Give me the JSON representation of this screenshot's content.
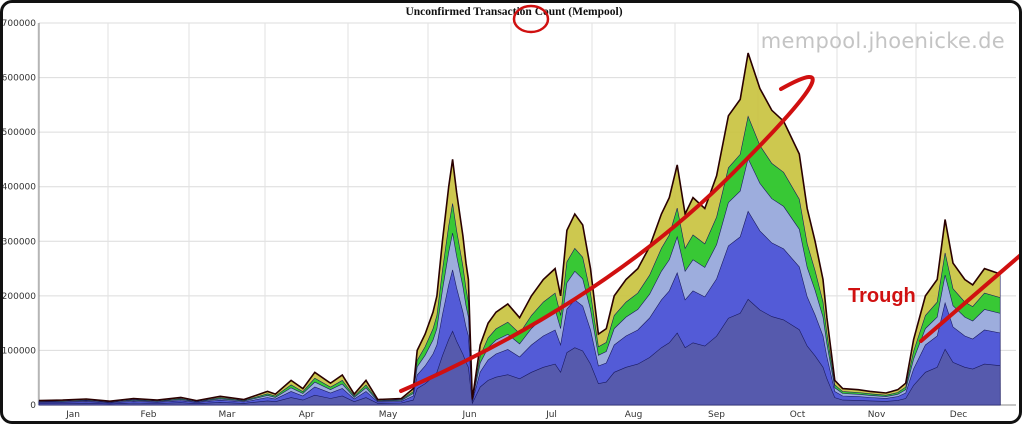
{
  "chart_data": {
    "type": "area",
    "title": "Unconfirmed Transaction Count (Mempool)",
    "watermark": "mempool.jhoenicke.de",
    "annotation": "Trough",
    "xlabel": "",
    "ylabel": "",
    "ylim": [
      0,
      700000
    ],
    "yticks": [
      "0",
      "100000",
      "200000",
      "300000",
      "400000",
      "500000",
      "600000",
      "700000"
    ],
    "xticks": [
      "Jan",
      "Feb",
      "Mar",
      "Apr",
      "May",
      "Jun",
      "Jul",
      "Aug",
      "Sep",
      "Oct",
      "Nov",
      "Dec"
    ],
    "grid": true,
    "colors": {
      "base": "#565aa8",
      "blue": "#4b52d6",
      "lightblue": "#a8aaf0",
      "green": "#28c832",
      "yellow": "#c8c23c",
      "line": "#2a0000",
      "trend": "#d01010"
    },
    "series": [
      {
        "values": [
          [
            0,
            8000
          ],
          [
            0.3,
            9000
          ],
          [
            0.6,
            11000
          ],
          [
            0.9,
            7000
          ],
          [
            1.2,
            12000
          ],
          [
            1.5,
            9000
          ],
          [
            1.8,
            14000
          ],
          [
            2.0,
            8000
          ],
          [
            2.3,
            16000
          ],
          [
            2.6,
            10000
          ],
          [
            2.9,
            25000
          ],
          [
            3.0,
            20000
          ],
          [
            3.2,
            45000
          ],
          [
            3.35,
            30000
          ],
          [
            3.5,
            60000
          ],
          [
            3.7,
            40000
          ],
          [
            3.85,
            55000
          ],
          [
            4.0,
            20000
          ],
          [
            4.15,
            45000
          ],
          [
            4.3,
            10000
          ],
          [
            4.6,
            12000
          ],
          [
            4.75,
            30000
          ],
          [
            4.8,
            100000
          ],
          [
            4.9,
            130000
          ],
          [
            5.0,
            170000
          ],
          [
            5.05,
            200000
          ],
          [
            5.12,
            300000
          ],
          [
            5.2,
            400000
          ],
          [
            5.25,
            450000
          ],
          [
            5.3,
            390000
          ],
          [
            5.38,
            310000
          ],
          [
            5.42,
            260000
          ],
          [
            5.45,
            230000
          ],
          [
            5.5,
            10000
          ],
          [
            5.6,
            110000
          ],
          [
            5.7,
            150000
          ],
          [
            5.8,
            170000
          ],
          [
            5.95,
            185000
          ],
          [
            6.1,
            160000
          ],
          [
            6.25,
            200000
          ],
          [
            6.4,
            230000
          ],
          [
            6.55,
            250000
          ],
          [
            6.62,
            200000
          ],
          [
            6.7,
            320000
          ],
          [
            6.8,
            350000
          ],
          [
            6.9,
            330000
          ],
          [
            7.0,
            250000
          ],
          [
            7.1,
            130000
          ],
          [
            7.2,
            140000
          ],
          [
            7.3,
            200000
          ],
          [
            7.45,
            230000
          ],
          [
            7.6,
            250000
          ],
          [
            7.75,
            290000
          ],
          [
            7.9,
            350000
          ],
          [
            8.0,
            380000
          ],
          [
            8.1,
            440000
          ],
          [
            8.2,
            350000
          ],
          [
            8.3,
            380000
          ],
          [
            8.45,
            360000
          ],
          [
            8.6,
            420000
          ],
          [
            8.75,
            530000
          ],
          [
            8.9,
            560000
          ],
          [
            9.0,
            645000
          ],
          [
            9.15,
            580000
          ],
          [
            9.3,
            540000
          ],
          [
            9.45,
            520000
          ],
          [
            9.65,
            460000
          ],
          [
            9.75,
            360000
          ],
          [
            9.85,
            300000
          ],
          [
            9.95,
            230000
          ],
          [
            10.0,
            160000
          ],
          [
            10.1,
            45000
          ],
          [
            10.2,
            30000
          ],
          [
            10.4,
            28000
          ],
          [
            10.55,
            25000
          ],
          [
            10.75,
            22000
          ],
          [
            10.9,
            28000
          ],
          [
            11.0,
            40000
          ],
          [
            11.1,
            120000
          ],
          [
            11.25,
            200000
          ],
          [
            11.4,
            230000
          ],
          [
            11.5,
            340000
          ],
          [
            11.6,
            260000
          ],
          [
            11.75,
            230000
          ],
          [
            11.85,
            220000
          ],
          [
            12.0,
            250000
          ],
          [
            12.2,
            240000
          ]
        ]
      }
    ]
  }
}
